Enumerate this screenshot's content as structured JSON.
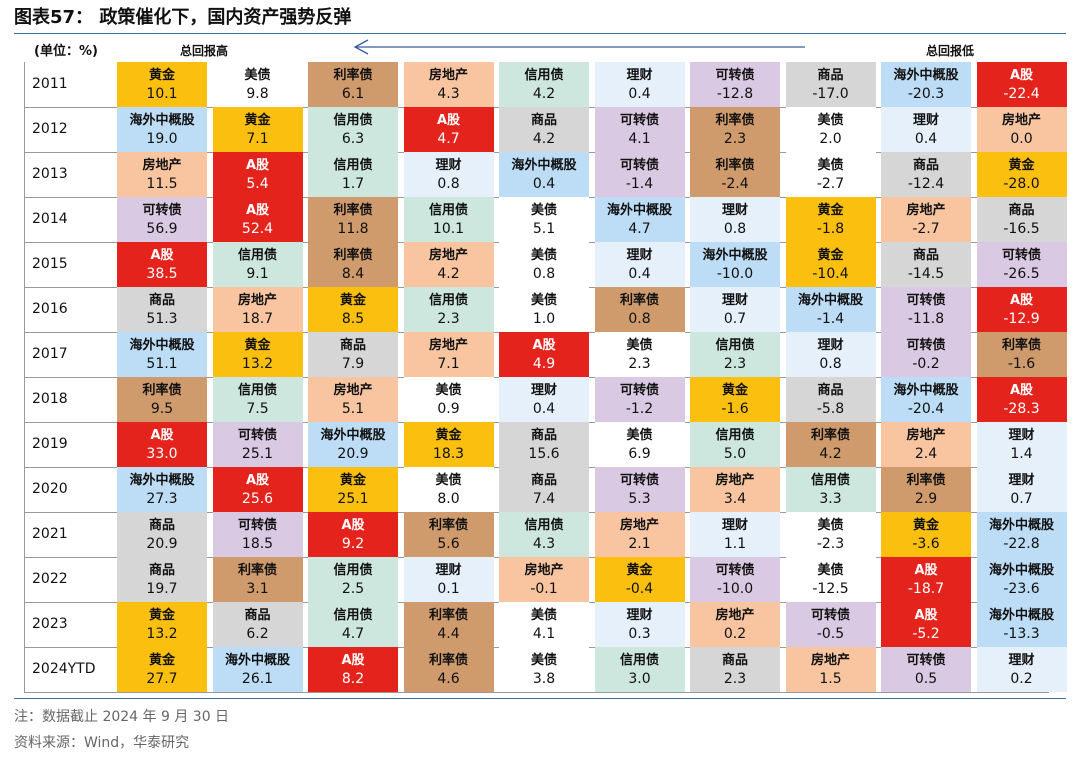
{
  "title": "图表57：  政策催化下，国内资产强势反弹",
  "header": {
    "unit": "(单位：%)",
    "left_label": "总回报高",
    "right_label": "总回报低"
  },
  "colors": {
    "黄金": "#fbbf10",
    "美债": "#ffffff",
    "利率债": "#cf9a6c",
    "房地产": "#f8c5a0",
    "信用债": "#cde7df",
    "理财": "#e6f0fb",
    "可转债": "#dac9e2",
    "商品": "#d6d6d6",
    "海外中概股": "#bddcf5",
    "A股": "#e3231c",
    "arrow": "#3a5aa0"
  },
  "chart_data": {
    "type": "table",
    "rows": [
      {
        "year": "2011",
        "cells": [
          [
            "黄金",
            "10.1"
          ],
          [
            "美债",
            "9.8"
          ],
          [
            "利率债",
            "6.1"
          ],
          [
            "房地产",
            "4.3"
          ],
          [
            "信用债",
            "4.2"
          ],
          [
            "理财",
            "0.4"
          ],
          [
            "可转债",
            "-12.8"
          ],
          [
            "商品",
            "-17.0"
          ],
          [
            "海外中概股",
            "-20.3"
          ],
          [
            "A股",
            "-22.4"
          ]
        ]
      },
      {
        "year": "2012",
        "cells": [
          [
            "海外中概股",
            "19.0"
          ],
          [
            "黄金",
            "7.1"
          ],
          [
            "信用债",
            "6.3"
          ],
          [
            "A股",
            "4.7"
          ],
          [
            "商品",
            "4.2"
          ],
          [
            "可转债",
            "4.1"
          ],
          [
            "利率债",
            "2.3"
          ],
          [
            "美债",
            "2.0"
          ],
          [
            "理财",
            "0.4"
          ],
          [
            "房地产",
            "0.0"
          ]
        ]
      },
      {
        "year": "2013",
        "cells": [
          [
            "房地产",
            "11.5"
          ],
          [
            "A股",
            "5.4"
          ],
          [
            "信用债",
            "1.7"
          ],
          [
            "理财",
            "0.8"
          ],
          [
            "海外中概股",
            "0.4"
          ],
          [
            "可转债",
            "-1.4"
          ],
          [
            "利率债",
            "-2.4"
          ],
          [
            "美债",
            "-2.7"
          ],
          [
            "商品",
            "-12.4"
          ],
          [
            "黄金",
            "-28.0"
          ]
        ]
      },
      {
        "year": "2014",
        "cells": [
          [
            "可转债",
            "56.9"
          ],
          [
            "A股",
            "52.4"
          ],
          [
            "利率债",
            "11.8"
          ],
          [
            "信用债",
            "10.1"
          ],
          [
            "美债",
            "5.1"
          ],
          [
            "海外中概股",
            "4.7"
          ],
          [
            "理财",
            "0.8"
          ],
          [
            "黄金",
            "-1.8"
          ],
          [
            "房地产",
            "-2.7"
          ],
          [
            "商品",
            "-16.5"
          ]
        ]
      },
      {
        "year": "2015",
        "cells": [
          [
            "A股",
            "38.5"
          ],
          [
            "信用债",
            "9.1"
          ],
          [
            "利率债",
            "8.4"
          ],
          [
            "房地产",
            "4.2"
          ],
          [
            "美债",
            "0.8"
          ],
          [
            "理财",
            "0.4"
          ],
          [
            "海外中概股",
            "-10.0"
          ],
          [
            "黄金",
            "-10.4"
          ],
          [
            "商品",
            "-14.5"
          ],
          [
            "可转债",
            "-26.5"
          ]
        ]
      },
      {
        "year": "2016",
        "cells": [
          [
            "商品",
            "51.3"
          ],
          [
            "房地产",
            "18.7"
          ],
          [
            "黄金",
            "8.5"
          ],
          [
            "信用债",
            "2.3"
          ],
          [
            "美债",
            "1.0"
          ],
          [
            "利率债",
            "0.8"
          ],
          [
            "理财",
            "0.7"
          ],
          [
            "海外中概股",
            "-1.4"
          ],
          [
            "可转债",
            "-11.8"
          ],
          [
            "A股",
            "-12.9"
          ]
        ]
      },
      {
        "year": "2017",
        "cells": [
          [
            "海外中概股",
            "51.1"
          ],
          [
            "黄金",
            "13.2"
          ],
          [
            "商品",
            "7.9"
          ],
          [
            "房地产",
            "7.1"
          ],
          [
            "A股",
            "4.9"
          ],
          [
            "美债",
            "2.3"
          ],
          [
            "信用债",
            "2.3"
          ],
          [
            "理财",
            "0.8"
          ],
          [
            "可转债",
            "-0.2"
          ],
          [
            "利率债",
            "-1.6"
          ]
        ]
      },
      {
        "year": "2018",
        "cells": [
          [
            "利率债",
            "9.5"
          ],
          [
            "信用债",
            "7.5"
          ],
          [
            "房地产",
            "5.1"
          ],
          [
            "美债",
            "0.9"
          ],
          [
            "理财",
            "0.4"
          ],
          [
            "可转债",
            "-1.2"
          ],
          [
            "黄金",
            "-1.6"
          ],
          [
            "商品",
            "-5.8"
          ],
          [
            "海外中概股",
            "-20.4"
          ],
          [
            "A股",
            "-28.3"
          ]
        ]
      },
      {
        "year": "2019",
        "cells": [
          [
            "A股",
            "33.0"
          ],
          [
            "可转债",
            "25.1"
          ],
          [
            "海外中概股",
            "20.9"
          ],
          [
            "黄金",
            "18.3"
          ],
          [
            "商品",
            "15.6"
          ],
          [
            "美债",
            "6.9"
          ],
          [
            "信用债",
            "5.0"
          ],
          [
            "利率债",
            "4.2"
          ],
          [
            "房地产",
            "2.4"
          ],
          [
            "理财",
            "1.4"
          ]
        ]
      },
      {
        "year": "2020",
        "cells": [
          [
            "海外中概股",
            "27.3"
          ],
          [
            "A股",
            "25.6"
          ],
          [
            "黄金",
            "25.1"
          ],
          [
            "美债",
            "8.0"
          ],
          [
            "商品",
            "7.4"
          ],
          [
            "可转债",
            "5.3"
          ],
          [
            "房地产",
            "3.4"
          ],
          [
            "信用债",
            "3.3"
          ],
          [
            "利率债",
            "2.9"
          ],
          [
            "理财",
            "0.7"
          ]
        ]
      },
      {
        "year": "2021",
        "cells": [
          [
            "商品",
            "20.9"
          ],
          [
            "可转债",
            "18.5"
          ],
          [
            "A股",
            "9.2"
          ],
          [
            "利率债",
            "5.6"
          ],
          [
            "信用债",
            "4.3"
          ],
          [
            "房地产",
            "2.1"
          ],
          [
            "理财",
            "1.1"
          ],
          [
            "美债",
            "-2.3"
          ],
          [
            "黄金",
            "-3.6"
          ],
          [
            "海外中概股",
            "-22.8"
          ]
        ]
      },
      {
        "year": "2022",
        "cells": [
          [
            "商品",
            "19.7"
          ],
          [
            "利率债",
            "3.1"
          ],
          [
            "信用债",
            "2.5"
          ],
          [
            "理财",
            "0.1"
          ],
          [
            "房地产",
            "-0.1"
          ],
          [
            "黄金",
            "-0.4"
          ],
          [
            "可转债",
            "-10.0"
          ],
          [
            "美债",
            "-12.5"
          ],
          [
            "A股",
            "-18.7"
          ],
          [
            "海外中概股",
            "-23.6"
          ]
        ]
      },
      {
        "year": "2023",
        "cells": [
          [
            "黄金",
            "13.2"
          ],
          [
            "商品",
            "6.2"
          ],
          [
            "信用债",
            "4.7"
          ],
          [
            "利率债",
            "4.4"
          ],
          [
            "美债",
            "4.1"
          ],
          [
            "理财",
            "0.3"
          ],
          [
            "房地产",
            "0.2"
          ],
          [
            "可转债",
            "-0.5"
          ],
          [
            "A股",
            "-5.2"
          ],
          [
            "海外中概股",
            "-13.3"
          ]
        ]
      },
      {
        "year": "2024YTD",
        "cells": [
          [
            "黄金",
            "27.7"
          ],
          [
            "海外中概股",
            "26.1"
          ],
          [
            "A股",
            "8.2"
          ],
          [
            "利率债",
            "4.6"
          ],
          [
            "美债",
            "3.8"
          ],
          [
            "信用债",
            "3.0"
          ],
          [
            "商品",
            "2.3"
          ],
          [
            "房地产",
            "1.5"
          ],
          [
            "可转债",
            "0.5"
          ],
          [
            "理财",
            "0.2"
          ]
        ]
      }
    ]
  },
  "footnote": "注：数据截止 2024 年 9 月 30 日",
  "source": "资料来源：Wind，华泰研究"
}
